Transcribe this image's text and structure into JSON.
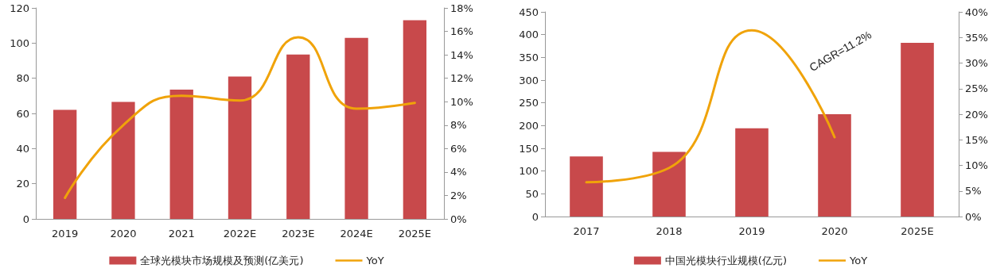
{
  "chart_data": [
    {
      "type": "bar",
      "categories": [
        "2019",
        "2020",
        "2021",
        "2022E",
        "2023E",
        "2024E",
        "2025E"
      ],
      "series": [
        {
          "name": "全球光模块市场规模及预测(亿美元)",
          "color": "#c8494b",
          "values": [
            62,
            66.5,
            73.5,
            81,
            93.5,
            103,
            113
          ]
        },
        {
          "name": "YoY",
          "type": "line",
          "axis": "y2",
          "color": "#f0a30a",
          "values": [
            1.8,
            8.0,
            10.5,
            10.1,
            15.5,
            9.4,
            9.9
          ]
        }
      ],
      "ylim": [
        0,
        120
      ],
      "yticks": [
        0,
        20,
        40,
        60,
        80,
        100,
        120
      ],
      "y2lim": [
        0,
        18
      ],
      "y2ticks": [
        {
          "value": 0,
          "label": "0%"
        },
        {
          "value": 2,
          "label": "2%"
        },
        {
          "value": 4,
          "label": "4%"
        },
        {
          "value": 6,
          "label": "6%"
        },
        {
          "value": 8,
          "label": "8%"
        },
        {
          "value": 10,
          "label": "10%"
        },
        {
          "value": 12,
          "label": "12%"
        },
        {
          "value": 14,
          "label": "14%"
        },
        {
          "value": 16,
          "label": "16%"
        },
        {
          "value": 18,
          "label": "18%"
        }
      ],
      "grid": false,
      "legend": "bottom",
      "marker": "none",
      "line_style": "solid"
    },
    {
      "type": "bar",
      "categories": [
        "2017",
        "2018",
        "2019",
        "2020",
        "2025E"
      ],
      "series": [
        {
          "name": "中国光模块行业规模(亿元)",
          "color": "#c8494b",
          "values": [
            132,
            142,
            194,
            225,
            382
          ]
        },
        {
          "name": "YoY",
          "type": "line",
          "axis": "y2",
          "color": "#f0a30a",
          "values": [
            6.7,
            9.5,
            36.4,
            15.5,
            null
          ]
        }
      ],
      "ylim": [
        0,
        450
      ],
      "yticks": [
        0,
        50,
        100,
        150,
        200,
        250,
        300,
        350,
        400,
        450
      ],
      "y2lim": [
        0,
        40
      ],
      "y2ticks": [
        {
          "value": 0,
          "label": "0%"
        },
        {
          "value": 5,
          "label": "5%"
        },
        {
          "value": 10,
          "label": "10%"
        },
        {
          "value": 15,
          "label": "15%"
        },
        {
          "value": 20,
          "label": "20%"
        },
        {
          "value": 25,
          "label": "25%"
        },
        {
          "value": 30,
          "label": "30%"
        },
        {
          "value": 35,
          "label": "35%"
        },
        {
          "value": 40,
          "label": "40%"
        }
      ],
      "annotations": [
        "CAGR=11.2%"
      ],
      "grid": false,
      "legend": "bottom",
      "marker": "none",
      "line_style": "solid"
    }
  ]
}
